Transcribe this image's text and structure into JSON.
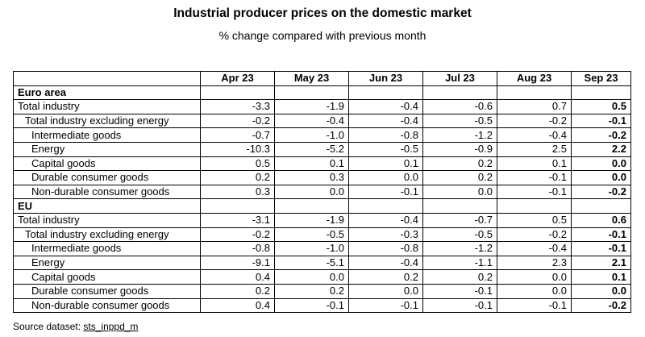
{
  "title": "Industrial producer prices on the domestic market",
  "subtitle": "% change compared with previous month",
  "columns": [
    "",
    "Apr 23",
    "May 23",
    "Jun 23",
    "Jul 23",
    "Aug 23",
    "Sep 23"
  ],
  "sections": [
    {
      "name": "Euro area",
      "rows": [
        {
          "label": "Total industry",
          "indent": 0,
          "values": [
            "-3.3",
            "-1.9",
            "-0.4",
            "-0.6",
            "0.7",
            "0.5"
          ]
        },
        {
          "label": "Total industry excluding energy",
          "indent": 1,
          "values": [
            "-0.2",
            "-0.4",
            "-0.4",
            "-0.5",
            "-0.2",
            "-0.1"
          ]
        },
        {
          "label": "Intermediate goods",
          "indent": 2,
          "values": [
            "-0.7",
            "-1.0",
            "-0.8",
            "-1.2",
            "-0.4",
            "-0.2"
          ]
        },
        {
          "label": "Energy",
          "indent": 2,
          "values": [
            "-10.3",
            "-5.2",
            "-0.5",
            "-0.9",
            "2.5",
            "2.2"
          ]
        },
        {
          "label": "Capital goods",
          "indent": 2,
          "values": [
            "0.5",
            "0.1",
            "0.1",
            "0.2",
            "0.1",
            "0.0"
          ]
        },
        {
          "label": "Durable consumer goods",
          "indent": 2,
          "values": [
            "0.2",
            "0.3",
            "0.0",
            "0.2",
            "-0.1",
            "0.0"
          ]
        },
        {
          "label": "Non-durable consumer goods",
          "indent": 2,
          "values": [
            "0.3",
            "0.0",
            "-0.1",
            "0.0",
            "-0.1",
            "-0.2"
          ]
        }
      ]
    },
    {
      "name": "EU",
      "rows": [
        {
          "label": "Total industry",
          "indent": 0,
          "values": [
            "-3.1",
            "-1.9",
            "-0.4",
            "-0.7",
            "0.5",
            "0.6"
          ]
        },
        {
          "label": "Total industry excluding energy",
          "indent": 1,
          "values": [
            "-0.2",
            "-0.5",
            "-0.3",
            "-0.5",
            "-0.2",
            "-0.1"
          ]
        },
        {
          "label": "Intermediate goods",
          "indent": 2,
          "values": [
            "-0.8",
            "-1.0",
            "-0.8",
            "-1.2",
            "-0.4",
            "-0.1"
          ]
        },
        {
          "label": "Energy",
          "indent": 2,
          "values": [
            "-9.1",
            "-5.1",
            "-0.4",
            "-1.1",
            "2.3",
            "2.1"
          ]
        },
        {
          "label": "Capital goods",
          "indent": 2,
          "values": [
            "0.4",
            "0.0",
            "0.2",
            "0.2",
            "0.0",
            "0.1"
          ]
        },
        {
          "label": "Durable consumer goods",
          "indent": 2,
          "values": [
            "0.2",
            "0.2",
            "0.0",
            "-0.1",
            "0.0",
            "0.0"
          ]
        },
        {
          "label": "Non-durable consumer goods",
          "indent": 2,
          "values": [
            "0.4",
            "-0.1",
            "-0.1",
            "-0.1",
            "-0.1",
            "-0.2"
          ]
        }
      ]
    }
  ],
  "footer": {
    "prefix": "Source dataset: ",
    "dataset": "sts_inppd_m"
  }
}
